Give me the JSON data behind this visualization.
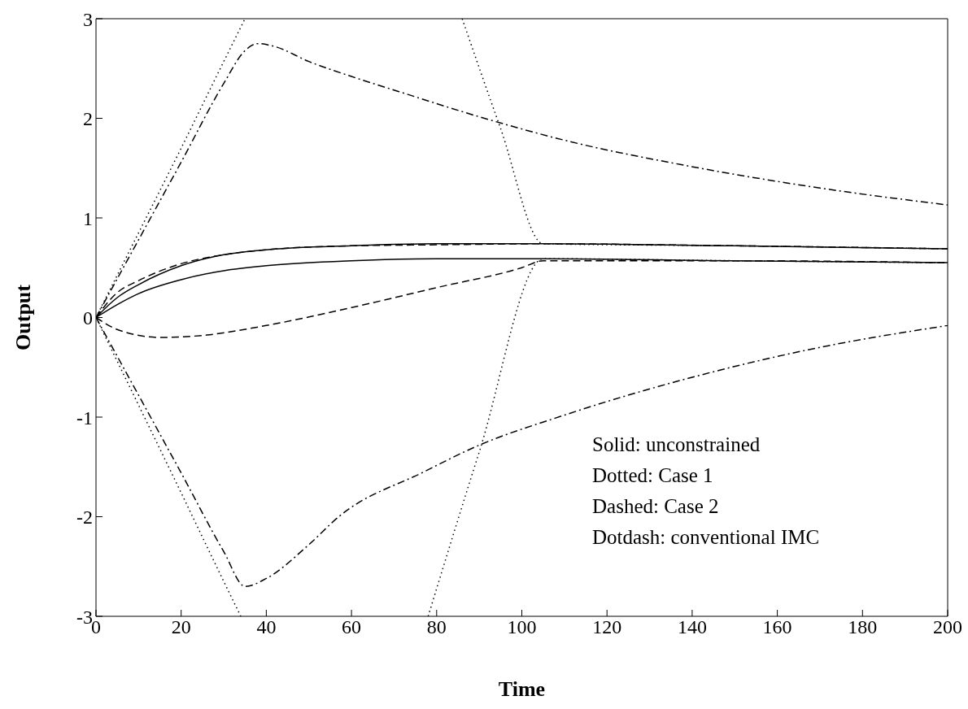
{
  "chart_data": {
    "type": "line",
    "xlabel": "Time",
    "ylabel": "Output",
    "xlim": [
      0,
      200
    ],
    "ylim": [
      -3,
      3
    ],
    "xticks": [
      0,
      20,
      40,
      60,
      80,
      100,
      120,
      140,
      160,
      180,
      200
    ],
    "yticks": [
      -3,
      -2,
      -1,
      0,
      1,
      2,
      3
    ],
    "grid": false,
    "annotations": [
      "Solid: unconstrained",
      "Dotted: Case 1",
      "Dashed: Case 2",
      "Dotdash: conventional IMC"
    ],
    "series": [
      {
        "color": "#000000",
        "line_style": "solid",
        "x": [
          0,
          5,
          10,
          20,
          30,
          40,
          60,
          80,
          105,
          150,
          200
        ],
        "values": [
          0,
          0.2,
          0.33,
          0.52,
          0.63,
          0.68,
          0.72,
          0.74,
          0.74,
          0.72,
          0.69
        ]
      },
      {
        "color": "#000000",
        "line_style": "solid",
        "x": [
          0,
          5,
          10,
          20,
          30,
          40,
          60,
          80,
          105,
          150,
          200
        ],
        "values": [
          0,
          0.13,
          0.24,
          0.38,
          0.47,
          0.52,
          0.57,
          0.59,
          0.59,
          0.57,
          0.55
        ]
      },
      {
        "color": "#000000",
        "line_style": "dotted",
        "x": [
          0,
          10,
          20,
          30,
          35,
          60,
          86,
          95,
          105,
          150,
          200
        ],
        "values": [
          0,
          0.85,
          1.7,
          2.57,
          3,
          null,
          3,
          1.9,
          0.74,
          0.72,
          0.69
        ]
      },
      {
        "color": "#000000",
        "line_style": "dotted",
        "x": [
          0,
          10,
          20,
          30,
          34,
          60,
          78,
          90,
          105,
          150,
          200
        ],
        "values": [
          0,
          -0.88,
          -1.76,
          -2.65,
          -3,
          null,
          -3,
          -1.35,
          0.59,
          0.57,
          0.55
        ]
      },
      {
        "color": "#000000",
        "line_style": "dashed",
        "x": [
          0,
          5,
          10,
          20,
          30,
          40,
          60,
          80,
          105,
          150,
          200
        ],
        "values": [
          0,
          0.25,
          0.37,
          0.54,
          0.63,
          0.68,
          0.72,
          0.73,
          0.74,
          0.72,
          0.69
        ]
      },
      {
        "color": "#000000",
        "line_style": "dashed",
        "x": [
          0,
          5,
          15,
          25,
          40,
          60,
          80,
          100,
          105,
          150,
          200
        ],
        "values": [
          0,
          -0.12,
          -0.2,
          -0.18,
          -0.08,
          0.1,
          0.3,
          0.5,
          0.57,
          0.57,
          0.55
        ]
      },
      {
        "color": "#000000",
        "line_style": "dashdot",
        "x": [
          0,
          10,
          20,
          30,
          35,
          38,
          42,
          50,
          60,
          71,
          92,
          110,
          138,
          170,
          200
        ],
        "values": [
          0,
          0.78,
          1.56,
          2.35,
          2.68,
          2.75,
          2.72,
          2.57,
          2.42,
          2.27,
          1.99,
          1.78,
          1.53,
          1.3,
          1.13
        ]
      },
      {
        "color": "#000000",
        "line_style": "dashdot",
        "x": [
          0,
          10,
          20,
          30,
          35,
          40,
          50,
          57,
          77,
          89,
          110,
          140,
          170,
          200
        ],
        "values": [
          0,
          -0.78,
          -1.56,
          -2.35,
          -2.7,
          -2.62,
          -2.28,
          -2,
          -1.55,
          -1.3,
          -0.98,
          -0.6,
          -0.3,
          -0.08
        ]
      }
    ]
  }
}
